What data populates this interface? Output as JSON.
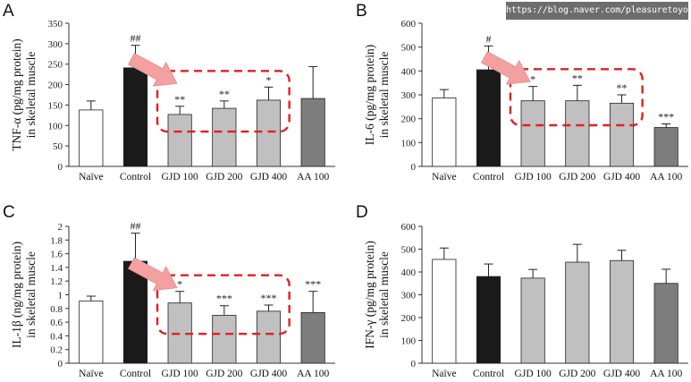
{
  "watermark": "https://blog.naver.com/pleasuretoyou",
  "colors": {
    "naive": "#ffffff",
    "control": "#1a1a1a",
    "gjd": "#c0c0c0",
    "aa": "#7d7d7d",
    "highlight_box": "#e02020",
    "arrow": "#f4a0a0",
    "axis": "#333333"
  },
  "chart_data": [
    {
      "panel": "A",
      "type": "bar",
      "ylabel": [
        "TNF-α (pg/mg protein)",
        "in skeletal muscle"
      ],
      "categories": [
        "Naïve",
        "Control",
        "GJD 100",
        "GJD 200",
        "GJD 400",
        "AA 100"
      ],
      "values": [
        138,
        241,
        127,
        142,
        162,
        166
      ],
      "errors": [
        22,
        55,
        20,
        18,
        32,
        78
      ],
      "marks": [
        "",
        "##",
        "**",
        "**",
        "*",
        ""
      ],
      "ylim": [
        0,
        350
      ],
      "yticks": [
        "0",
        "50",
        "100",
        "150",
        "200",
        "250",
        "300",
        "350"
      ],
      "highlight": [
        "GJD 100",
        "GJD 400"
      ],
      "arrow": true
    },
    {
      "panel": "B",
      "type": "bar",
      "ylabel": [
        "IL-6 (pg/mg protein)",
        "in skeletal muscle"
      ],
      "categories": [
        "Naïve",
        "Control",
        "GJD 100",
        "GJD 200",
        "GJD 400",
        "AA 100"
      ],
      "values": [
        287,
        405,
        275,
        275,
        265,
        163
      ],
      "errors": [
        35,
        100,
        60,
        65,
        35,
        15
      ],
      "marks": [
        "",
        "#",
        "*",
        "**",
        "**",
        "***"
      ],
      "ylim": [
        0,
        600
      ],
      "yticks": [
        "0",
        "100",
        "200",
        "300",
        "400",
        "500",
        "600"
      ],
      "highlight": [
        "GJD 100",
        "GJD 400"
      ],
      "arrow": true
    },
    {
      "panel": "C",
      "type": "bar",
      "ylabel": [
        "IL-1β (ng/mg protein)",
        "in skeletal muscle"
      ],
      "categories": [
        "Naïve",
        "Control",
        "GJD 100",
        "GJD 200",
        "GJD 400",
        "AA 100"
      ],
      "values": [
        0.91,
        1.49,
        0.88,
        0.7,
        0.76,
        0.74
      ],
      "errors": [
        0.07,
        0.41,
        0.17,
        0.14,
        0.09,
        0.31
      ],
      "marks": [
        "",
        "##",
        "*",
        "***",
        "***",
        "***"
      ],
      "ylim": [
        0,
        2
      ],
      "yticks": [
        "0",
        "0.2",
        "0.4",
        "0.6",
        "0.8",
        "1",
        "1.2",
        "1.4",
        "1.6",
        "1.8",
        "2"
      ],
      "highlight": [
        "GJD 100",
        "GJD 400"
      ],
      "arrow": true
    },
    {
      "panel": "D",
      "type": "bar",
      "ylabel": [
        "IFN-γ (pg/mg protein)",
        "in skeletal muscle"
      ],
      "categories": [
        "Naïve",
        "Control",
        "GJD 100",
        "GJD 200",
        "GJD 400",
        "AA 100"
      ],
      "values": [
        455,
        380,
        373,
        443,
        450,
        350
      ],
      "errors": [
        50,
        55,
        38,
        78,
        45,
        62
      ],
      "marks": [
        "",
        "",
        "",
        "",
        "",
        ""
      ],
      "ylim": [
        0,
        600
      ],
      "yticks": [
        "0",
        "100",
        "200",
        "300",
        "400",
        "500",
        "600"
      ],
      "highlight": null,
      "arrow": false
    }
  ]
}
